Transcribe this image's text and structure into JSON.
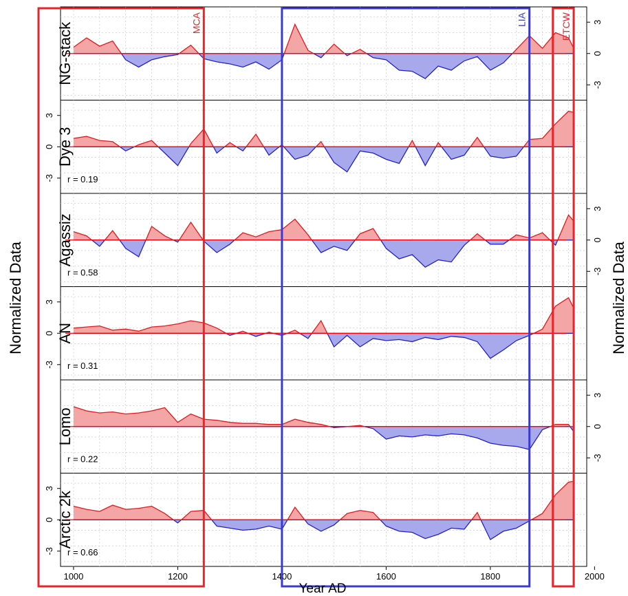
{
  "figure": {
    "xlabel": "Year AD",
    "ylabel_left": "Normalized Data",
    "ylabel_right": "Normalized Data"
  },
  "colors": {
    "positive_fill": "#f4a6a6",
    "positive_line": "#e31a1c",
    "negative_fill": "#a8a8ec",
    "negative_line": "#2222cc",
    "zero_line": "#ff0000",
    "period_red": "#e8242a",
    "period_blue": "#3a3ad0"
  },
  "periods": [
    {
      "label": "MCA",
      "color": "red",
      "start": 975,
      "end": 1250
    },
    {
      "label": "LIA",
      "color": "blue",
      "start": 1400,
      "end": 1875
    },
    {
      "label": "ETCW",
      "color": "red",
      "start": 1920,
      "end": 1960
    }
  ],
  "chart_data": {
    "type": "area",
    "xlim": [
      975,
      1985
    ],
    "x_ticks": [
      "1000",
      "1200",
      "1400",
      "1600",
      "1800",
      "2000"
    ],
    "ylim": [
      -4.2,
      4.2
    ],
    "y_ticks": [
      "3",
      "0",
      "-3"
    ],
    "x_years": [
      1000,
      1025,
      1050,
      1075,
      1100,
      1125,
      1150,
      1175,
      1200,
      1225,
      1250,
      1275,
      1300,
      1325,
      1350,
      1375,
      1400,
      1425,
      1450,
      1475,
      1500,
      1525,
      1550,
      1575,
      1600,
      1625,
      1650,
      1675,
      1700,
      1725,
      1750,
      1775,
      1800,
      1825,
      1850,
      1875,
      1900,
      1925,
      1950,
      1960
    ],
    "series": [
      {
        "name": "NG-stack",
        "r": "",
        "axis_side": "right",
        "values": [
          0.6,
          1.5,
          0.7,
          1.2,
          -0.6,
          -1.3,
          -0.6,
          -0.3,
          -0.1,
          0.8,
          -0.5,
          -0.8,
          -1.0,
          -1.3,
          -0.8,
          -1.5,
          -0.6,
          2.8,
          0.3,
          -0.4,
          0.9,
          -0.2,
          0.4,
          -0.4,
          -0.6,
          -1.6,
          -1.7,
          -2.4,
          -1.2,
          -1.6,
          -0.7,
          -0.3,
          -1.6,
          -0.9,
          0.4,
          1.7,
          0.5,
          2.0,
          1.5,
          0.5
        ]
      },
      {
        "name": "Dye 3",
        "r": "r = 0.19",
        "axis_side": "left",
        "values": [
          0.8,
          1.0,
          0.6,
          0.5,
          -0.4,
          0.2,
          0.6,
          -0.6,
          -1.8,
          0.3,
          1.7,
          -0.6,
          0.4,
          -0.4,
          1.2,
          -0.8,
          0.2,
          -1.2,
          -0.8,
          0.5,
          -1.5,
          -2.4,
          -0.4,
          -0.6,
          -1.2,
          -1.6,
          0.6,
          -1.8,
          0.4,
          -1.2,
          -0.8,
          0.9,
          -0.9,
          -1.1,
          -0.9,
          0.7,
          0.8,
          2.2,
          3.4,
          3.3
        ]
      },
      {
        "name": "Agassiz",
        "r": "r = 0.58",
        "axis_side": "right",
        "values": [
          0.8,
          0.4,
          -0.6,
          0.9,
          -0.8,
          -1.6,
          1.3,
          0.4,
          -0.2,
          1.7,
          -0.1,
          -1.2,
          -0.4,
          0.7,
          0.3,
          0.8,
          1.0,
          2.0,
          0.5,
          -1.2,
          -0.6,
          -1.0,
          0.6,
          1.1,
          -0.8,
          -1.8,
          -1.4,
          -2.6,
          -1.9,
          -2.1,
          -0.5,
          0.6,
          -0.4,
          -0.4,
          0.5,
          0.2,
          0.7,
          -0.5,
          2.4,
          1.8
        ]
      },
      {
        "name": "AN",
        "r": "r = 0.31",
        "axis_side": "left",
        "values": [
          0.5,
          0.6,
          0.7,
          0.3,
          0.4,
          0.2,
          0.6,
          0.7,
          0.9,
          1.2,
          1.0,
          0.5,
          -0.2,
          0.2,
          -0.3,
          0.1,
          -0.2,
          0.3,
          -0.5,
          1.2,
          -1.3,
          -0.2,
          -1.3,
          -0.5,
          -0.7,
          -0.6,
          -0.8,
          -0.4,
          -0.6,
          -0.3,
          -0.4,
          -0.8,
          -2.4,
          -1.6,
          -0.7,
          -0.2,
          0.4,
          2.6,
          3.4,
          2.4
        ]
      },
      {
        "name": "Lomo",
        "r": "r = 0.22",
        "axis_side": "right",
        "values": [
          1.9,
          1.5,
          1.3,
          1.4,
          1.2,
          1.3,
          1.5,
          1.8,
          0.4,
          1.2,
          0.7,
          0.6,
          0.4,
          0.3,
          0.3,
          0.2,
          0.2,
          0.7,
          0.4,
          0.2,
          -0.1,
          0.0,
          0.1,
          -0.2,
          -1.2,
          -0.9,
          -1.0,
          -0.8,
          -0.9,
          -0.7,
          -0.8,
          -1.1,
          -1.6,
          -1.8,
          -1.9,
          -2.2,
          -0.3,
          0.2,
          0.2,
          -0.5
        ]
      },
      {
        "name": "Arctic 2k",
        "r": "r = 0.66",
        "axis_side": "left",
        "values": [
          1.3,
          1.0,
          0.8,
          1.4,
          1.0,
          1.1,
          1.3,
          0.6,
          -0.3,
          0.8,
          0.9,
          -0.6,
          -0.8,
          -1.0,
          -0.9,
          -0.6,
          -0.9,
          1.2,
          -0.4,
          -1.1,
          -0.5,
          0.6,
          0.9,
          0.7,
          -0.6,
          -1.1,
          -1.2,
          -1.8,
          -1.4,
          -0.8,
          -0.9,
          0.7,
          -1.9,
          -1.1,
          -0.8,
          -0.1,
          0.6,
          2.4,
          3.6,
          3.7
        ]
      }
    ]
  }
}
